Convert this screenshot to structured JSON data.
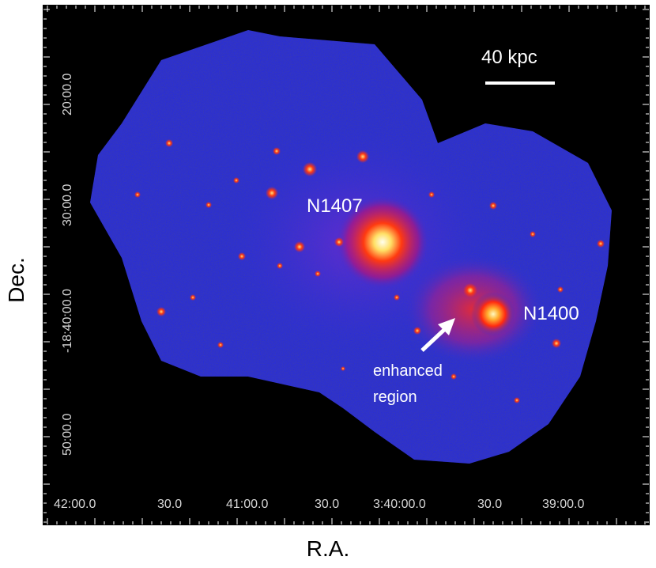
{
  "axes": {
    "xlabel": "R.A.",
    "ylabel": "Dec.",
    "x_ticks": [
      "42:00.0",
      "30.0",
      "41:00.0",
      "30.0",
      "3:40:00.0",
      "30.0",
      "39:00.0"
    ],
    "y_ticks": [
      "20:00.0",
      "30:00.0",
      "-18:40:00.0",
      "50:00.0"
    ]
  },
  "scale_bar": {
    "label": "40 kpc"
  },
  "annotations": {
    "n1407": "N1407",
    "n1400": "N1400",
    "enhanced_line1": "enhanced",
    "enhanced_line2": "region"
  },
  "colors": {
    "background": "#000000",
    "field": "#2a2ed6",
    "source": "#ff3a1a",
    "core": "#ffffcc"
  }
}
